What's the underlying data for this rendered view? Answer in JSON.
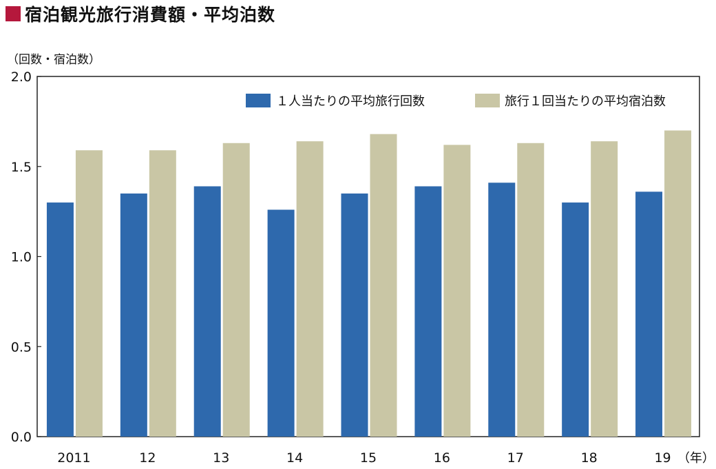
{
  "title": "宿泊観光旅行消費額・平均泊数",
  "colors": {
    "title_marker": "#b5183c",
    "series_1": "#2e69ad",
    "series_2": "#c9c6a5"
  },
  "chart_data": {
    "type": "bar",
    "ylabel": "（回数・宿泊数）",
    "xlabel": "（年）",
    "ylim": [
      0,
      2.0
    ],
    "yticks": [
      "0.0",
      "0.5",
      "1.0",
      "1.5",
      "2.0"
    ],
    "ytick_values": [
      0,
      0.5,
      1.0,
      1.5,
      2.0
    ],
    "grid": false,
    "legend_position": "top-right",
    "categories": [
      "2011",
      "12",
      "13",
      "14",
      "15",
      "16",
      "17",
      "18",
      "19"
    ],
    "series": [
      {
        "name": "１人当たりの平均旅行回数",
        "color": "#2e69ad",
        "values": [
          1.3,
          1.35,
          1.39,
          1.26,
          1.35,
          1.39,
          1.41,
          1.3,
          1.36
        ]
      },
      {
        "name": "旅行１回当たりの平均宿泊数",
        "color": "#c9c6a5",
        "values": [
          1.59,
          1.59,
          1.63,
          1.64,
          1.68,
          1.62,
          1.63,
          1.64,
          1.7
        ]
      }
    ]
  }
}
